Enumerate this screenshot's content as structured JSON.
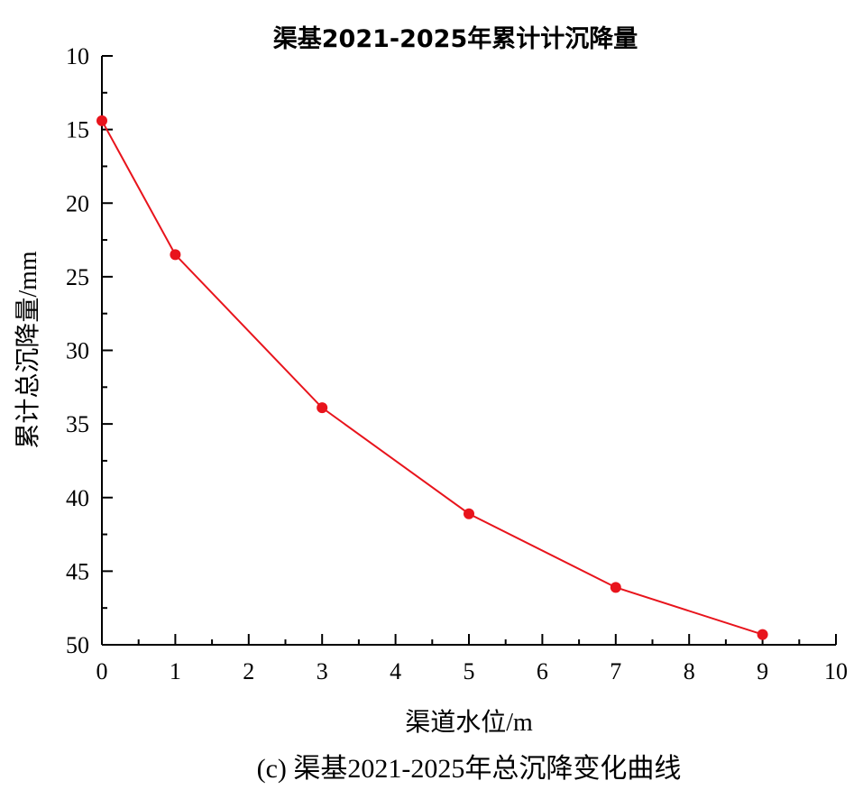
{
  "chart_data": {
    "type": "line",
    "title": "渠基2021-2025年累计计沉降量",
    "xlabel": "渠道水位/m",
    "ylabel": "累计总沉降量/mm",
    "caption": "(c) 渠基2021-2025年总沉降变化曲线",
    "xlim": [
      0,
      10
    ],
    "ylim": [
      10,
      50
    ],
    "y_inverted": true,
    "x_ticks": [
      0,
      1,
      2,
      3,
      4,
      5,
      6,
      7,
      8,
      9,
      10
    ],
    "y_ticks": [
      10,
      15,
      20,
      25,
      30,
      35,
      40,
      45,
      50
    ],
    "grid": false,
    "series": [
      {
        "color": "#e8141c",
        "points": [
          {
            "x": 0,
            "y": 14.4
          },
          {
            "x": 1,
            "y": 23.5
          },
          {
            "x": 3,
            "y": 33.9
          },
          {
            "x": 5,
            "y": 41.1
          },
          {
            "x": 7,
            "y": 46.1
          },
          {
            "x": 9,
            "y": 49.3
          }
        ]
      }
    ]
  }
}
